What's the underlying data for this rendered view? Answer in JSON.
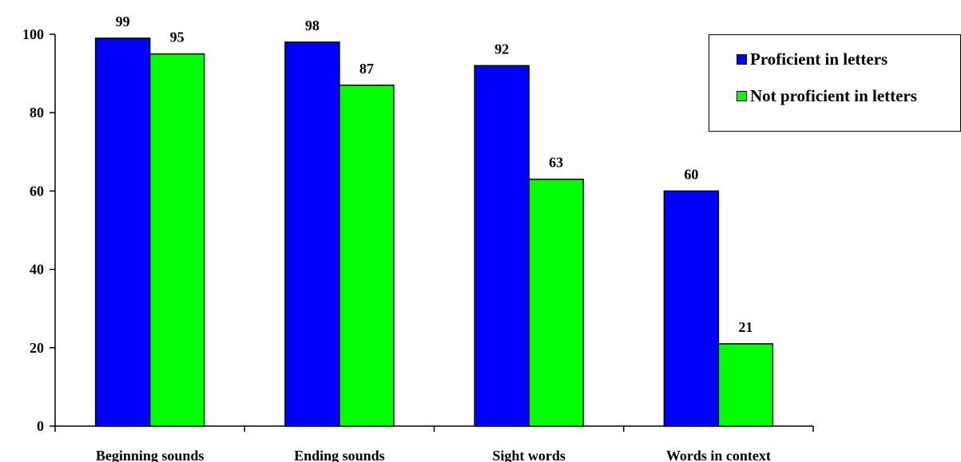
{
  "chart_data": {
    "type": "bar",
    "categories": [
      "Beginning sounds",
      "Ending sounds",
      "Sight words",
      "Words in context"
    ],
    "series": [
      {
        "name": "Proficient in letters",
        "color": "#0000ff",
        "values": [
          99,
          98,
          92,
          60
        ]
      },
      {
        "name": "Not proficient in letters",
        "color": "#00ff00",
        "values": [
          95,
          87,
          63,
          21
        ]
      }
    ],
    "yticks": [
      "0",
      "20",
      "40",
      "60",
      "80",
      "100"
    ],
    "ylim": [
      0,
      100
    ],
    "grid": false,
    "legend_position": "top-right",
    "data_labels": true
  }
}
